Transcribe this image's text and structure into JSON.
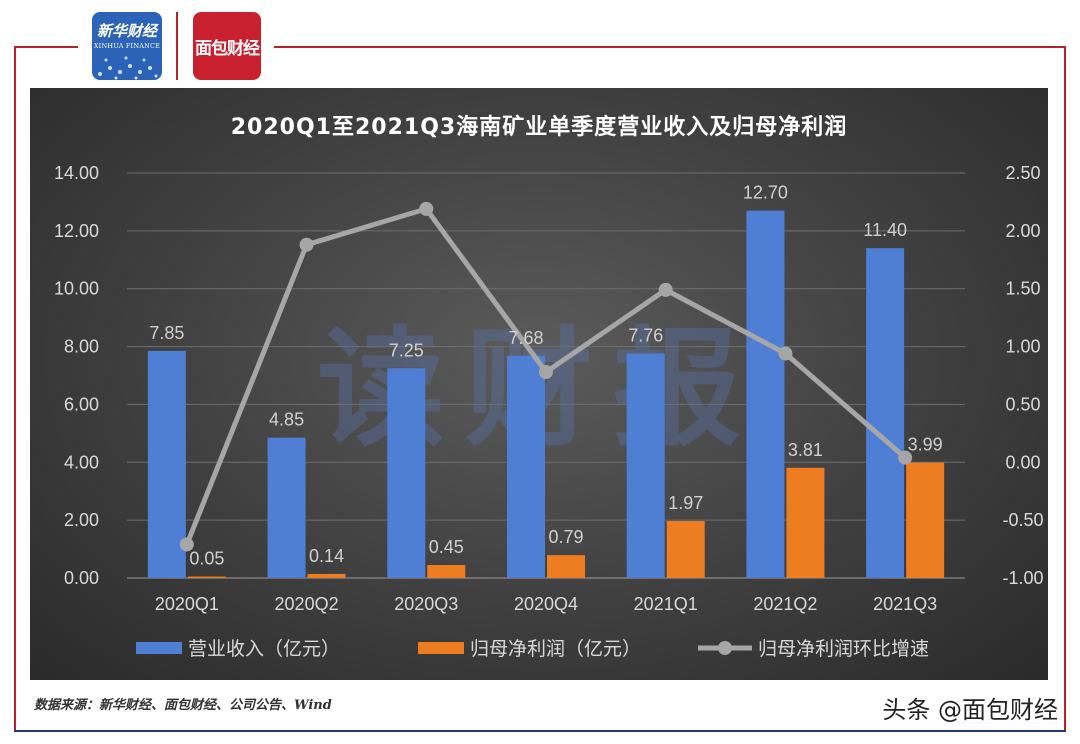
{
  "header": {
    "logo_left_cn": "新华财经",
    "logo_left_en": "XINHUA FINANCE",
    "logo_right": "面包财经"
  },
  "source_note": "数据来源：新华财经、面包财经、公司公告、Wind",
  "watermark": "头条 @面包财经",
  "background_watermark": "读财报",
  "colors": {
    "revenue": "#4f7fd4",
    "profit": "#ee7d22",
    "growth": "#a6a6a6",
    "frame_red": "#b8202b",
    "frame_blue": "#1f3a7a"
  },
  "chart_data": {
    "type": "bar",
    "title": "2020Q1至2021Q3海南矿业单季度营业收入及归母净利润",
    "categories": [
      "2020Q1",
      "2020Q2",
      "2020Q3",
      "2020Q4",
      "2021Q1",
      "2021Q2",
      "2021Q3"
    ],
    "y_left": {
      "range": [
        0,
        14
      ],
      "ticks": [
        "0.00",
        "2.00",
        "4.00",
        "6.00",
        "8.00",
        "10.00",
        "12.00",
        "14.00"
      ]
    },
    "y_right": {
      "range": [
        -1,
        2.5
      ],
      "ticks": [
        "-1.00",
        "-0.50",
        "0.00",
        "0.50",
        "1.00",
        "1.50",
        "2.00",
        "2.50"
      ]
    },
    "grid": true,
    "legend_position": "bottom",
    "series": [
      {
        "name": "营业收入（亿元）",
        "type": "bar",
        "axis": "left",
        "values": [
          7.85,
          4.85,
          7.25,
          7.68,
          7.76,
          12.7,
          11.4
        ],
        "labels": [
          "7.85",
          "4.85",
          "7.25",
          "7.68",
          "7.76",
          "12.70",
          "11.40"
        ]
      },
      {
        "name": "归母净利润（亿元）",
        "type": "bar",
        "axis": "left",
        "values": [
          0.05,
          0.14,
          0.45,
          0.79,
          1.97,
          3.81,
          3.99
        ],
        "labels": [
          "0.05",
          "0.14",
          "0.45",
          "0.79",
          "1.97",
          "3.81",
          "3.99"
        ]
      },
      {
        "name": "归母净利润环比增速",
        "type": "line",
        "axis": "right",
        "values": [
          -0.71,
          1.88,
          2.19,
          0.78,
          1.49,
          0.94,
          0.04
        ]
      }
    ]
  }
}
